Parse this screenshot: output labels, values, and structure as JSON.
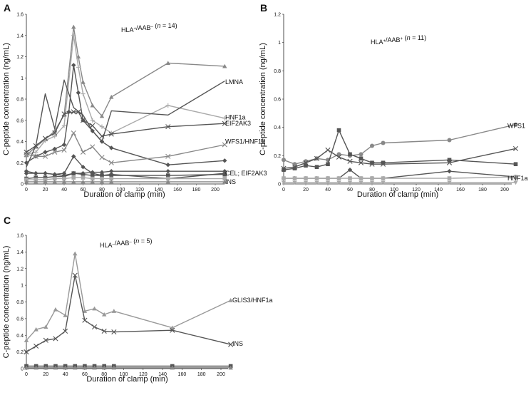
{
  "colors": {
    "dark": "#555555",
    "mid": "#888888",
    "light": "#aaaaaa",
    "axis": "#222222"
  },
  "chart_data": [
    {
      "panel": "A",
      "type": "line",
      "title_prefix": "HLA",
      "title_sup1": "+",
      "title_mid": "/AAB",
      "title_sup2": "–",
      "title_open": " (",
      "title_n": "n",
      "title_eq": " = 14)",
      "xlabel": "Duration of clamp (min)",
      "ylabel": "C-peptide concentration (ng/mL)",
      "xlim": [
        0,
        200
      ],
      "ylim": [
        0,
        1.6
      ],
      "xticks": [
        0,
        20,
        40,
        60,
        80,
        100,
        120,
        140,
        160,
        180,
        200
      ],
      "yticks": [
        0,
        0.2,
        0.4,
        0.6,
        0.8,
        1,
        1.2,
        1.4,
        1.6
      ],
      "xtick_labels": [
        "0",
        "20",
        "40",
        "60",
        "80",
        "100",
        "120",
        "140",
        "160",
        "180",
        "200"
      ],
      "ytick_labels": [
        "0",
        "0.2",
        "0.4",
        "0.6",
        "0.8",
        "1",
        "1.2",
        "1.4",
        "1.6"
      ],
      "annotations": [
        {
          "text": "LMNA",
          "x": 208,
          "y": 0.96
        },
        {
          "text": "HNF1a",
          "x": 208,
          "y": 0.63
        },
        {
          "text": "EIF2AK3",
          "x": 208,
          "y": 0.57
        },
        {
          "text": "WFS1/HNF1a",
          "x": 208,
          "y": 0.4
        },
        {
          "text": "CEL; EIF2AK3",
          "x": 208,
          "y": 0.1
        },
        {
          "text": "INS",
          "x": 208,
          "y": 0.02
        }
      ],
      "series": [
        {
          "name": "s1",
          "marker": "triangle",
          "color": "#888888",
          "x": [
            0,
            10,
            20,
            30,
            40,
            50,
            55,
            60,
            70,
            80,
            90,
            150,
            210
          ],
          "y": [
            0.27,
            0.35,
            0.42,
            0.5,
            0.65,
            1.48,
            1.2,
            0.96,
            0.74,
            0.64,
            0.82,
            1.14,
            1.11
          ]
        },
        {
          "name": "s2",
          "marker": "plus",
          "color": "#aaaaaa",
          "x": [
            0,
            10,
            20,
            30,
            40,
            50,
            55,
            60,
            70,
            80,
            90,
            150,
            210
          ],
          "y": [
            0.28,
            0.3,
            0.41,
            0.45,
            0.55,
            1.4,
            1.1,
            0.85,
            0.6,
            0.54,
            0.48,
            0.74,
            0.62
          ]
        },
        {
          "name": "s3",
          "marker": "none",
          "color": "#555555",
          "x": [
            0,
            10,
            20,
            30,
            40,
            50,
            60,
            70,
            80,
            90,
            150,
            210
          ],
          "y": [
            0.16,
            0.36,
            0.85,
            0.52,
            0.98,
            0.72,
            0.65,
            0.5,
            0.4,
            0.69,
            0.65,
            0.97
          ]
        },
        {
          "name": "s4",
          "marker": "diamond",
          "color": "#555555",
          "x": [
            0,
            10,
            20,
            30,
            40,
            45,
            50,
            55,
            60,
            70,
            80,
            90,
            150,
            210
          ],
          "y": [
            0.2,
            0.26,
            0.3,
            0.33,
            0.37,
            0.68,
            1.12,
            0.86,
            0.6,
            0.5,
            0.4,
            0.34,
            0.18,
            0.22
          ]
        },
        {
          "name": "s5",
          "marker": "x",
          "color": "#888888",
          "x": [
            0,
            10,
            20,
            30,
            40,
            50,
            60,
            70,
            80,
            90,
            150,
            210
          ],
          "y": [
            0.28,
            0.26,
            0.26,
            0.3,
            0.32,
            0.48,
            0.3,
            0.35,
            0.25,
            0.2,
            0.26,
            0.37
          ]
        },
        {
          "name": "s6",
          "marker": "x",
          "color": "#555555",
          "x": [
            0,
            10,
            20,
            30,
            40,
            50,
            55,
            60,
            70,
            80,
            90,
            150,
            210
          ],
          "y": [
            0.3,
            0.36,
            0.43,
            0.48,
            0.66,
            0.68,
            0.68,
            0.6,
            0.55,
            0.45,
            0.47,
            0.54,
            0.57
          ]
        },
        {
          "name": "s7",
          "marker": "diamond",
          "color": "#555555",
          "x": [
            0,
            10,
            20,
            30,
            40,
            50,
            60,
            70,
            80,
            90,
            150,
            210
          ],
          "y": [
            0.12,
            0.1,
            0.1,
            0.09,
            0.1,
            0.26,
            0.16,
            0.1,
            0.08,
            0.09,
            0.05,
            0.1
          ]
        },
        {
          "name": "s8",
          "marker": "diamond",
          "color": "#555555",
          "x": [
            0,
            10,
            20,
            30,
            40,
            50,
            60,
            70,
            80,
            90,
            150,
            210
          ],
          "y": [
            0.1,
            0.1,
            0.1,
            0.09,
            0.08,
            0.1,
            0.1,
            0.11,
            0.11,
            0.12,
            0.12,
            0.12
          ]
        },
        {
          "name": "s9",
          "marker": "square",
          "color": "#555555",
          "x": [
            0,
            10,
            20,
            30,
            40,
            50,
            60,
            70,
            80,
            90,
            150,
            210
          ],
          "y": [
            0.05,
            0.06,
            0.06,
            0.07,
            0.07,
            0.1,
            0.09,
            0.08,
            0.08,
            0.08,
            0.08,
            0.09
          ]
        },
        {
          "name": "s10",
          "marker": "square",
          "color": "#aaaaaa",
          "x": [
            0,
            10,
            20,
            30,
            40,
            50,
            60,
            70,
            80,
            90,
            150,
            210
          ],
          "y": [
            0.04,
            0.04,
            0.04,
            0.05,
            0.05,
            0.06,
            0.06,
            0.05,
            0.05,
            0.05,
            0.05,
            0.05
          ]
        },
        {
          "name": "s11",
          "marker": "triangle",
          "color": "#888888",
          "x": [
            0,
            10,
            20,
            30,
            40,
            50,
            60,
            70,
            80,
            90,
            150,
            210
          ],
          "y": [
            0.02,
            0.02,
            0.02,
            0.02,
            0.02,
            0.02,
            0.02,
            0.02,
            0.02,
            0.02,
            0.02,
            0.02
          ]
        },
        {
          "name": "s12",
          "marker": "none",
          "color": "#888888",
          "x": [
            0,
            210
          ],
          "y": [
            0.0,
            0.0
          ]
        }
      ]
    },
    {
      "panel": "B",
      "type": "line",
      "title_prefix": "HLA",
      "title_sup1": "+",
      "title_mid": "/AAB",
      "title_sup2": "+",
      "title_open": " (",
      "title_n": "n",
      "title_eq": " = 11)",
      "xlabel": "Duration of clamp (min)",
      "ylabel": "C-peptide concentration (ng/mL)",
      "xlim": [
        0,
        200
      ],
      "ylim": [
        0,
        1.2
      ],
      "xticks": [
        0,
        20,
        40,
        60,
        80,
        100,
        120,
        140,
        160,
        180,
        200
      ],
      "yticks": [
        0,
        0.2,
        0.4,
        0.6,
        0.8,
        1,
        1.2
      ],
      "xtick_labels": [
        "0",
        "20",
        "40",
        "60",
        "80",
        "100",
        "120",
        "140",
        "160",
        "180",
        "200"
      ],
      "ytick_labels": [
        "0",
        "0.2",
        "0.4",
        "0.6",
        "0.8",
        "1",
        "1.2"
      ],
      "annotations": [
        {
          "text": "WFS1",
          "x": 208,
          "y": 0.41
        },
        {
          "text": "HNF1a",
          "x": 208,
          "y": 0.04
        }
      ],
      "series": [
        {
          "name": "s1",
          "marker": "circle",
          "color": "#888888",
          "x": [
            0,
            10,
            20,
            30,
            40,
            50,
            60,
            70,
            80,
            90,
            150,
            210
          ],
          "y": [
            0.17,
            0.14,
            0.16,
            0.18,
            0.17,
            0.21,
            0.2,
            0.21,
            0.27,
            0.29,
            0.31,
            0.42
          ]
        },
        {
          "name": "s2",
          "marker": "square",
          "color": "#555555",
          "x": [
            0,
            10,
            20,
            30,
            40,
            50,
            60,
            70,
            80,
            90,
            150,
            210
          ],
          "y": [
            0.1,
            0.11,
            0.13,
            0.12,
            0.14,
            0.38,
            0.21,
            0.18,
            0.15,
            0.15,
            0.17,
            0.14
          ]
        },
        {
          "name": "s3",
          "marker": "x",
          "color": "#555555",
          "x": [
            0,
            10,
            20,
            30,
            40,
            50,
            60,
            70,
            80,
            90,
            150,
            210
          ],
          "y": [
            0.11,
            0.12,
            0.15,
            0.18,
            0.24,
            0.19,
            0.16,
            0.15,
            0.14,
            0.14,
            0.15,
            0.25
          ]
        },
        {
          "name": "s4",
          "marker": "diamond",
          "color": "#555555",
          "x": [
            0,
            10,
            20,
            30,
            40,
            50,
            60,
            70,
            80,
            90,
            150,
            210
          ],
          "y": [
            0.04,
            0.04,
            0.04,
            0.04,
            0.04,
            0.04,
            0.1,
            0.04,
            0.04,
            0.04,
            0.09,
            0.05
          ]
        },
        {
          "name": "s5",
          "marker": "square",
          "color": "#aaaaaa",
          "x": [
            0,
            10,
            20,
            30,
            40,
            50,
            60,
            70,
            80,
            90,
            150,
            210
          ],
          "y": [
            0.04,
            0.04,
            0.04,
            0.04,
            0.04,
            0.04,
            0.04,
            0.04,
            0.04,
            0.04,
            0.04,
            0.05
          ]
        },
        {
          "name": "s6",
          "marker": "triangle-down",
          "color": "#aaaaaa",
          "x": [
            0,
            10,
            20,
            30,
            40,
            50,
            60,
            70,
            80,
            90,
            150,
            210
          ],
          "y": [
            0.01,
            0.01,
            0.01,
            0.01,
            0.01,
            0.01,
            0.01,
            0.01,
            0.01,
            0.01,
            0.01,
            0.01
          ]
        }
      ]
    },
    {
      "panel": "C",
      "type": "line",
      "title_prefix": "HLA",
      "title_sup1": "–",
      "title_mid": "/AAB",
      "title_sup2": "–",
      "title_open": " (",
      "title_n": "n",
      "title_eq": " = 5)",
      "xlabel": "Duration of clamp (min)",
      "ylabel": "C-peptide concentration (ng/mL)",
      "xlim": [
        0,
        200
      ],
      "ylim": [
        0,
        1.6
      ],
      "xticks": [
        0,
        20,
        40,
        60,
        80,
        100,
        120,
        140,
        160,
        180,
        200
      ],
      "yticks": [
        0,
        0.2,
        0.4,
        0.6,
        0.8,
        1,
        1.2,
        1.4,
        1.6
      ],
      "xtick_labels": [
        "0",
        "20",
        "40",
        "60",
        "80",
        "100",
        "120",
        "140",
        "160",
        "180",
        "200"
      ],
      "ytick_labels": [
        "0",
        "0.2",
        "0.4",
        "0.6",
        "0.8",
        "1",
        "1.2",
        "1.4",
        "1.6"
      ],
      "annotations": [
        {
          "text": "GLIS3/HNF1a",
          "x": 208,
          "y": 0.82
        },
        {
          "text": "INS",
          "x": 208,
          "y": 0.3
        }
      ],
      "series": [
        {
          "name": "s1",
          "marker": "triangle",
          "color": "#999999",
          "x": [
            0,
            10,
            20,
            30,
            40,
            50,
            60,
            70,
            80,
            90,
            150,
            210
          ],
          "y": [
            0.34,
            0.47,
            0.5,
            0.71,
            0.64,
            1.38,
            0.69,
            0.72,
            0.65,
            0.69,
            0.49,
            0.82
          ]
        },
        {
          "name": "s2",
          "marker": "x",
          "color": "#555555",
          "x": [
            0,
            10,
            20,
            30,
            40,
            50,
            60,
            70,
            80,
            90,
            150,
            210
          ],
          "y": [
            0.2,
            0.27,
            0.34,
            0.36,
            0.45,
            1.12,
            0.58,
            0.5,
            0.45,
            0.44,
            0.46,
            0.29
          ]
        },
        {
          "name": "s3",
          "marker": "square",
          "color": "#555555",
          "x": [
            0,
            10,
            20,
            30,
            40,
            50,
            60,
            70,
            80,
            90,
            150,
            210
          ],
          "y": [
            0.03,
            0.03,
            0.03,
            0.03,
            0.03,
            0.03,
            0.03,
            0.03,
            0.03,
            0.03,
            0.03,
            0.03
          ]
        },
        {
          "name": "s4",
          "marker": "triangle",
          "color": "#888888",
          "x": [
            0,
            10,
            20,
            30,
            40,
            50,
            60,
            70,
            80,
            90,
            150,
            210
          ],
          "y": [
            0.01,
            0.01,
            0.01,
            0.01,
            0.01,
            0.01,
            0.01,
            0.01,
            0.01,
            0.01,
            0.01,
            0.01
          ]
        }
      ]
    }
  ]
}
